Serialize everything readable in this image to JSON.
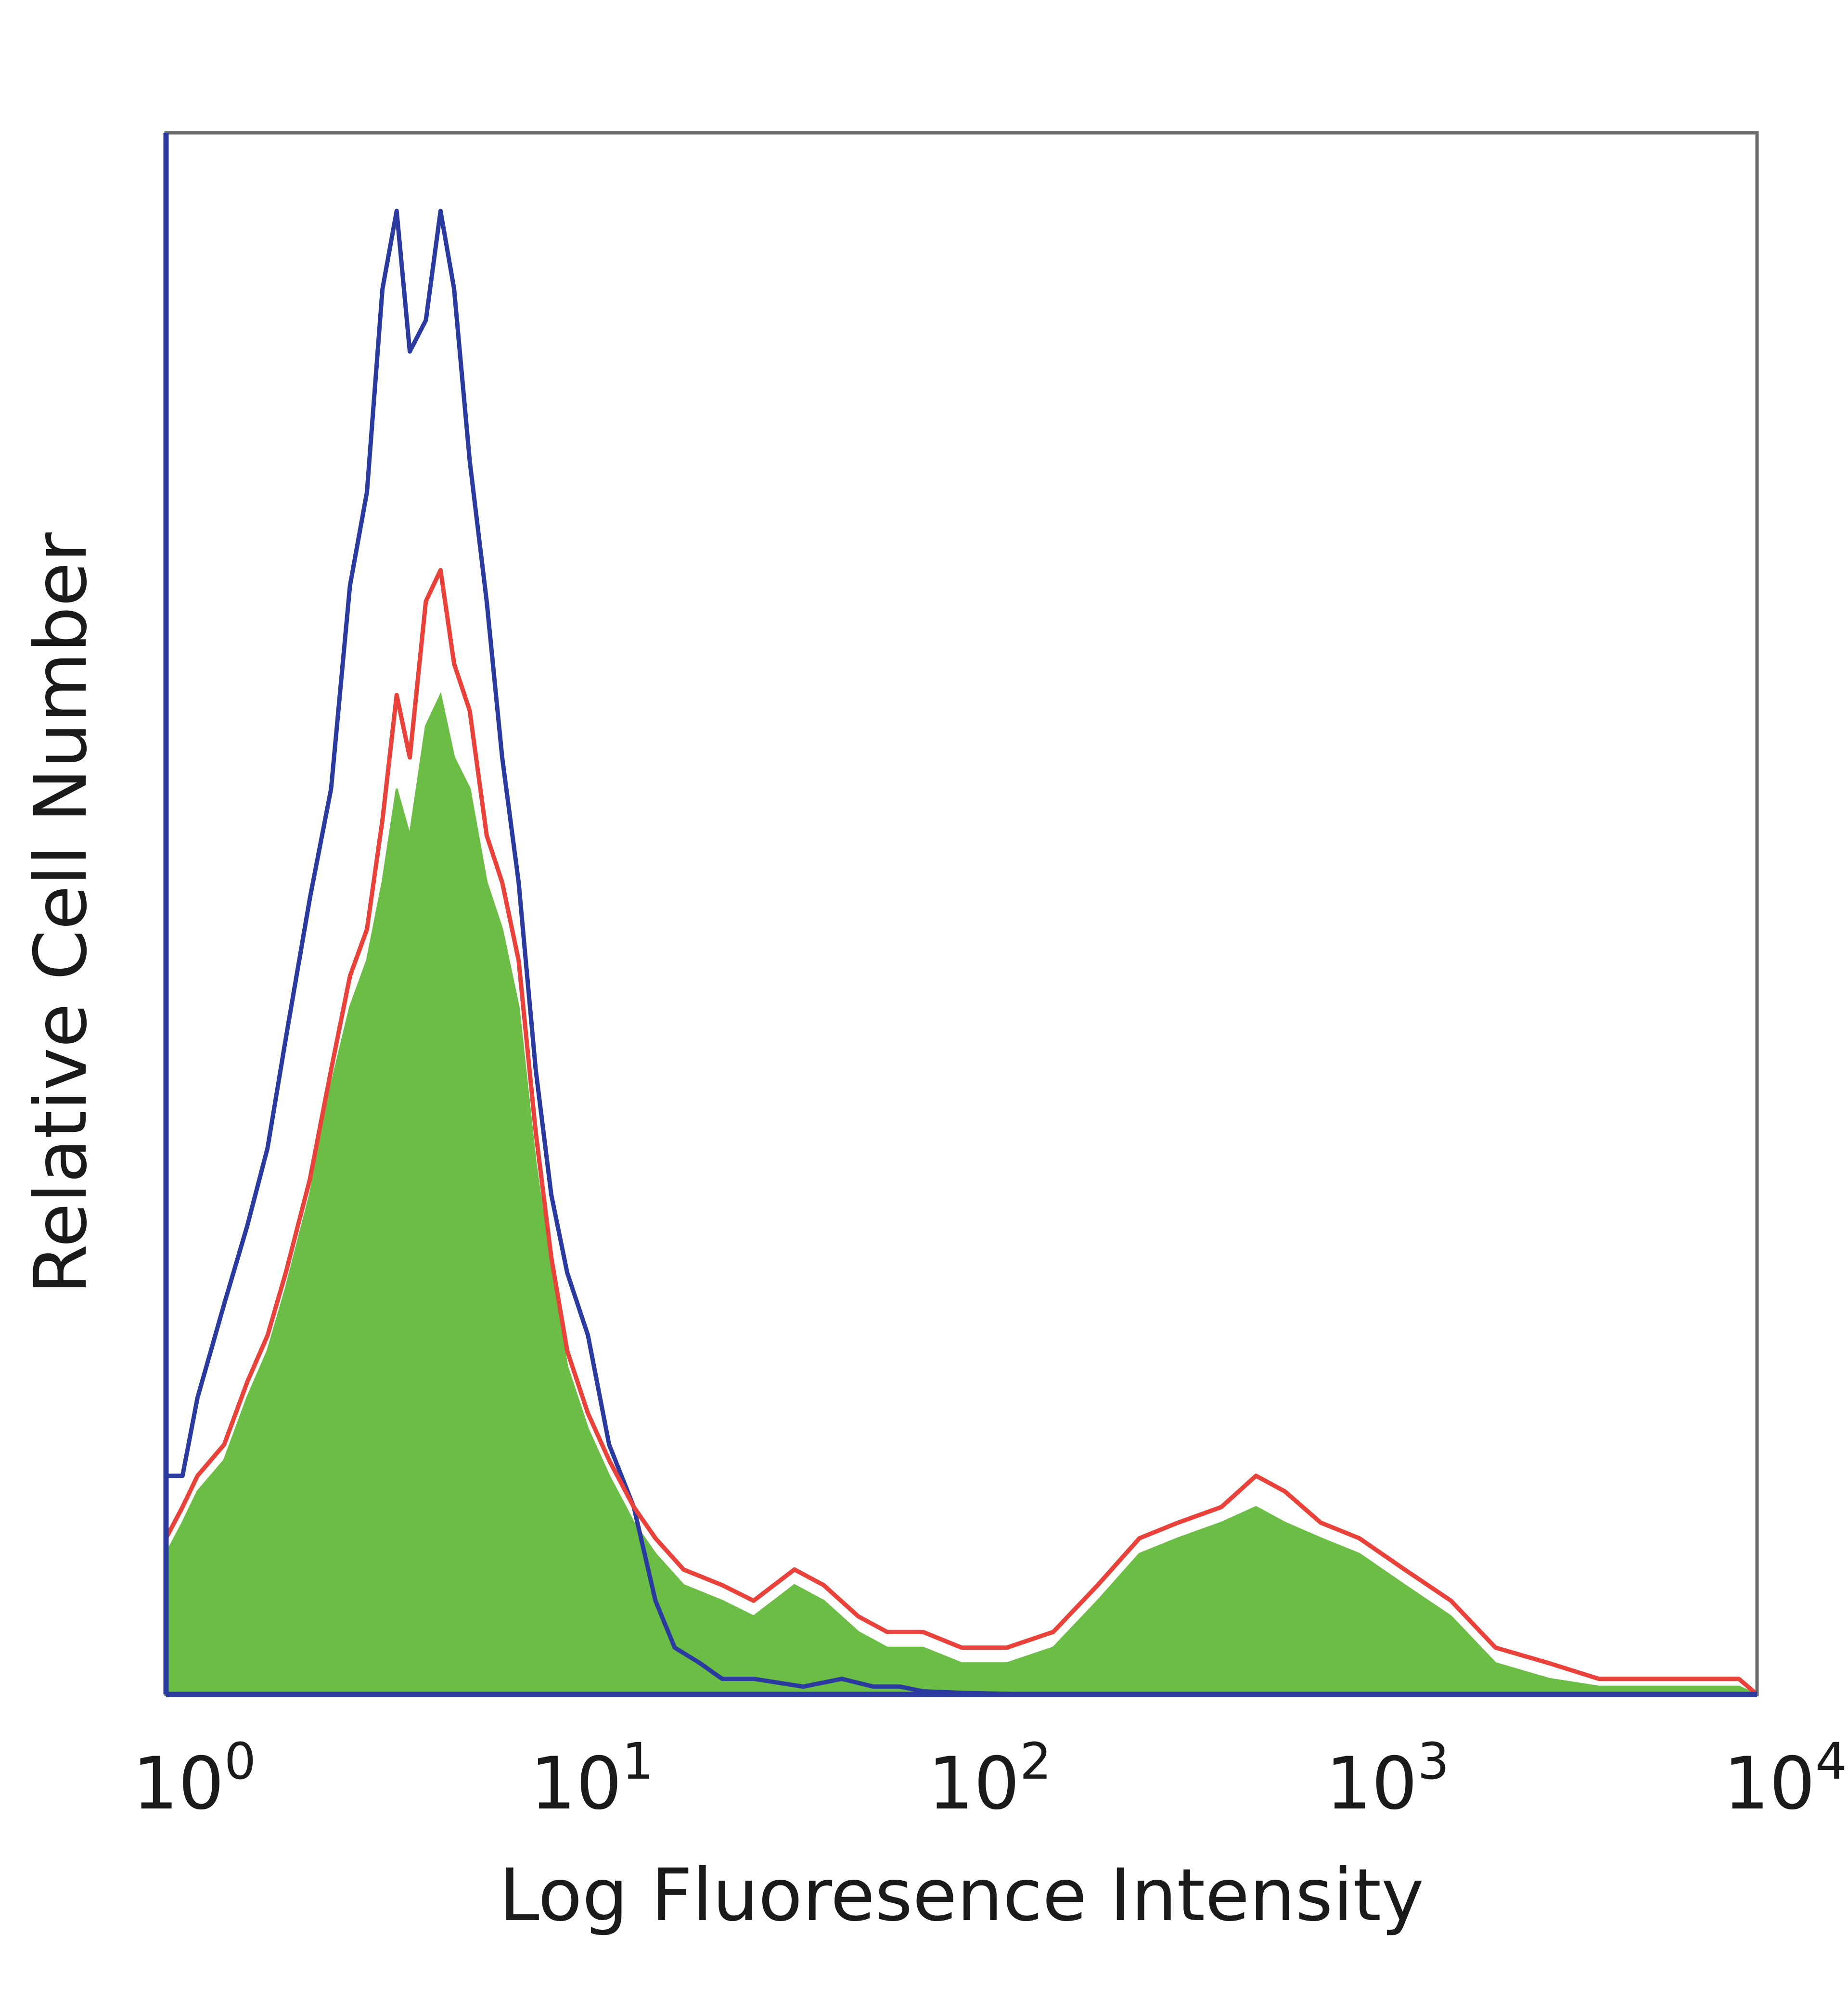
{
  "chart_data": {
    "type": "histogram",
    "xlabel": "Log Fluoresence Intensity",
    "ylabel": "Relative Cell Number",
    "x_scale": "log",
    "xlim": [
      1,
      10000
    ],
    "x_ticks": [
      {
        "base": "10",
        "exp": "0"
      },
      {
        "base": "10",
        "exp": "1"
      },
      {
        "base": "10",
        "exp": "2"
      },
      {
        "base": "10",
        "exp": "3"
      },
      {
        "base": "10",
        "exp": "4"
      }
    ],
    "ylim": [
      0,
      100
    ],
    "grid": false,
    "legend": "none",
    "series": [
      {
        "style": "outline",
        "color": "#2b3a9e",
        "x": [
          1,
          1.1,
          1.2,
          1.4,
          1.6,
          1.8,
          2.0,
          2.3,
          2.6,
          2.9,
          3.2,
          3.5,
          3.8,
          4.1,
          4.5,
          4.9,
          5.3,
          5.8,
          6.4,
          7.0,
          7.7,
          8.5,
          9.3,
          10.2,
          11.5,
          13,
          15,
          17,
          19,
          22,
          25,
          30,
          40,
          50,
          60,
          70,
          80,
          100,
          150,
          300,
          1000,
          10000
        ],
        "y": [
          14,
          14,
          19,
          25,
          30,
          35,
          42,
          51,
          58,
          71,
          77,
          90,
          95,
          86,
          88,
          95,
          90,
          79,
          70,
          60,
          52,
          40,
          32,
          27,
          23,
          16,
          12,
          6,
          3,
          2,
          1,
          1,
          0.5,
          1,
          0.5,
          0.5,
          0.2,
          0.1,
          0,
          0,
          0,
          0
        ]
      },
      {
        "style": "outline",
        "color": "#e8423a",
        "x": [
          1,
          1.1,
          1.2,
          1.4,
          1.6,
          1.8,
          2.0,
          2.3,
          2.6,
          2.9,
          3.2,
          3.5,
          3.8,
          4.1,
          4.5,
          4.9,
          5.3,
          5.8,
          6.4,
          7.0,
          7.7,
          8.5,
          9.3,
          10.2,
          11.5,
          13,
          15,
          17,
          20,
          25,
          30,
          38,
          45,
          55,
          65,
          80,
          100,
          130,
          170,
          220,
          280,
          350,
          450,
          550,
          650,
          800,
          1000,
          1300,
          1700,
          2200,
          3000,
          4000,
          5500,
          7500,
          9000,
          10000
        ],
        "y": [
          10,
          12,
          14,
          16,
          20,
          23,
          27,
          33,
          40,
          46,
          49,
          56,
          64,
          60,
          70,
          72,
          66,
          63,
          55,
          52,
          47,
          36,
          28,
          22,
          18,
          15,
          12,
          10,
          8,
          7,
          6,
          8,
          7,
          5,
          4,
          4,
          3,
          3,
          4,
          7,
          10,
          11,
          12,
          14,
          13,
          11,
          10,
          8,
          6,
          3,
          2,
          1,
          1,
          1,
          1,
          0
        ]
      },
      {
        "style": "filled",
        "color": "#6bbd45",
        "x": [
          1,
          1.1,
          1.2,
          1.4,
          1.6,
          1.8,
          2.0,
          2.3,
          2.6,
          2.9,
          3.2,
          3.5,
          3.8,
          4.1,
          4.5,
          4.9,
          5.3,
          5.8,
          6.4,
          7.0,
          7.7,
          8.5,
          9.3,
          10.2,
          11.5,
          13,
          15,
          17,
          20,
          25,
          30,
          38,
          45,
          55,
          65,
          80,
          100,
          130,
          170,
          220,
          280,
          350,
          450,
          550,
          650,
          800,
          1000,
          1300,
          1700,
          2200,
          3000,
          4000,
          5500,
          7500,
          9000,
          10000
        ],
        "y": [
          9,
          11,
          13,
          15,
          19,
          22,
          26,
          32,
          39,
          44,
          47,
          52,
          58,
          55,
          62,
          64,
          60,
          58,
          52,
          49,
          44,
          34,
          27,
          21,
          17,
          14,
          11,
          9,
          7,
          6,
          5,
          7,
          6,
          4,
          3,
          3,
          2,
          2,
          3,
          6,
          9,
          10,
          11,
          12,
          11,
          10,
          9,
          7,
          5,
          2,
          1,
          0.5,
          0.5,
          0.5,
          0.5,
          0
        ]
      }
    ]
  }
}
